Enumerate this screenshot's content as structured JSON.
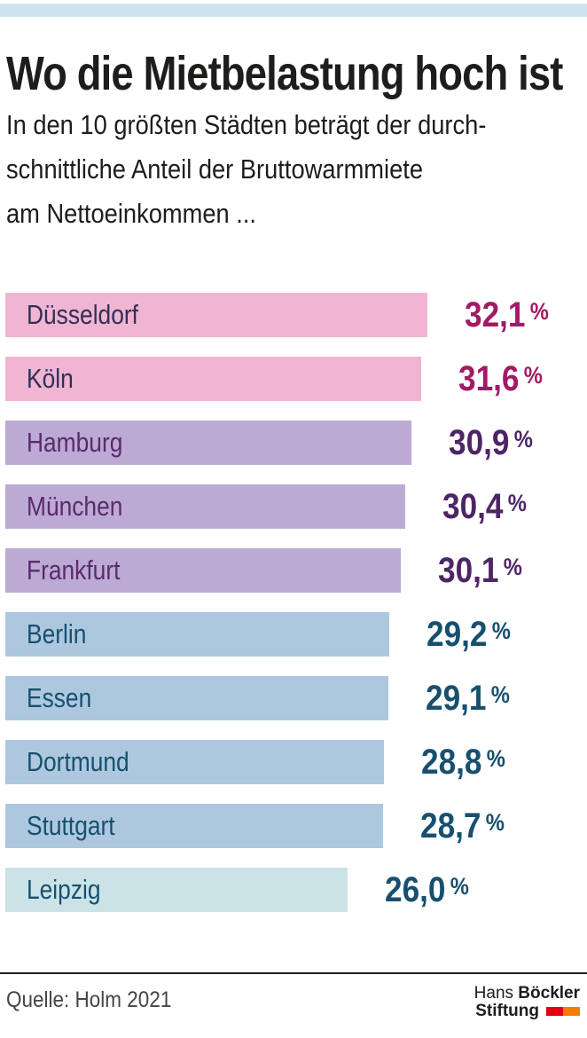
{
  "header": {
    "title": "Wo die Mietbelastung hoch ist",
    "subtitle_lines": [
      "In den 10 größten Städten beträgt der durch-",
      "schnittliche Anteil der Bruttowarmmiete",
      "am Nettoeinkommen ..."
    ]
  },
  "chart_data": {
    "type": "bar",
    "orientation": "horizontal",
    "title": "Wo die Mietbelastung hoch ist",
    "subtitle": "In den 10 größten Städten beträgt der durchschnittliche Anteil der Bruttowarmmiete am Nettoeinkommen ...",
    "unit": "%",
    "categories": [
      "Düsseldorf",
      "Köln",
      "Hamburg",
      "München",
      "Frankfurt",
      "Berlin",
      "Essen",
      "Dortmund",
      "Stuttgart",
      "Leipzig"
    ],
    "values": [
      32.1,
      31.6,
      30.9,
      30.4,
      30.1,
      29.2,
      29.1,
      28.8,
      28.7,
      26.0
    ],
    "value_labels": [
      "32,1",
      "31,6",
      "30,9",
      "30,4",
      "30,1",
      "29,2",
      "29,1",
      "28,8",
      "28,7",
      "26,0"
    ],
    "xlim": [
      0,
      32.1
    ],
    "grid": false,
    "legend": false,
    "color_groups": {
      "pink": {
        "bar": "#efb5d2",
        "label": "#312f58",
        "value": "#a21a66"
      },
      "purple": {
        "bar": "#bcaad4",
        "label": "#5b2a6e",
        "value": "#4f2566"
      },
      "blue": {
        "bar": "#adc8de",
        "label": "#17506f",
        "value": "#17506f"
      },
      "pale": {
        "bar": "#cbe2e6",
        "label": "#17506f",
        "value": "#17506f"
      }
    },
    "bar_group": [
      "pink",
      "pink",
      "purple",
      "purple",
      "purple",
      "blue",
      "blue",
      "blue",
      "blue",
      "pale"
    ]
  },
  "footer": {
    "source": "Quelle: Holm 2021",
    "logo": {
      "name_light": "Hans",
      "name_bold": "Böckler",
      "line2": "Stiftung",
      "red": "#e3000f",
      "orange": "#f07e00"
    }
  },
  "theme": {
    "top_band": "#cde4ef",
    "text": "#1d1d1b",
    "source_text": "#454545",
    "divider": "#1d1d1b"
  }
}
